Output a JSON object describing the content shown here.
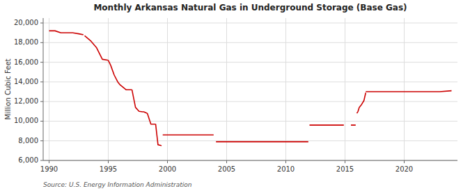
{
  "chart_data": {
    "type": "line",
    "title": "Monthly Arkansas Natural Gas in Underground Storage (Base Gas)",
    "ylabel": "Million Cubic Feet",
    "source": "Source: U.S. Energy Information Administration",
    "grid": true,
    "xlim": [
      1989.5,
      2024.5
    ],
    "ylim": [
      6000,
      20500
    ],
    "xticks": [
      1990,
      1995,
      2000,
      2005,
      2010,
      2015,
      2020
    ],
    "yticks": [
      {
        "value": 6000,
        "label": "6,000"
      },
      {
        "value": 8000,
        "label": "8,000"
      },
      {
        "value": 10000,
        "label": "10,000"
      },
      {
        "value": 12000,
        "label": "12,000"
      },
      {
        "value": 14000,
        "label": "14,000"
      },
      {
        "value": 16000,
        "label": "16,000"
      },
      {
        "value": 18000,
        "label": "18,000"
      },
      {
        "value": 20000,
        "label": "20,000"
      }
    ],
    "x": [
      1990.0,
      1990.5,
      1991.0,
      1991.5,
      1992.0,
      1992.5,
      1992.9,
      null,
      1993.0,
      1993.5,
      1994.0,
      1994.5,
      1995.0,
      null,
      1995.0,
      1995.2,
      1995.5,
      1995.8,
      1996.0,
      1996.5,
      1997.0,
      null,
      1997.0,
      1997.3,
      1997.6,
      1997.9,
      1998.0,
      1998.3,
      null,
      1998.3,
      1998.6,
      1998.9,
      1999.0,
      null,
      1999.0,
      1999.2,
      1999.5,
      null,
      1999.6,
      2000.0,
      2001.0,
      2002.0,
      2003.0,
      2003.9,
      null,
      2004.1,
      2005.0,
      2006.0,
      2007.0,
      2008.0,
      2009.0,
      2010.0,
      2011.0,
      2011.9,
      null,
      2012.0,
      2013.0,
      2014.0,
      2014.9,
      null,
      2015.5,
      2015.9,
      null,
      2016.0,
      2016.1,
      2016.2,
      2016.4,
      2016.6,
      2016.75,
      null,
      2016.75,
      2017.0,
      2018.0,
      2019.0,
      2020.0,
      2021.0,
      2022.0,
      2023.0,
      2024.0
    ],
    "series": [
      {
        "color": "#cc0000",
        "values": [
          19200,
          19200,
          19000,
          19000,
          19000,
          18900,
          18800,
          null,
          18700,
          18200,
          17500,
          16300,
          16200,
          null,
          16200,
          15700,
          14700,
          14000,
          13700,
          13200,
          13200,
          null,
          13200,
          11400,
          11000,
          10950,
          10950,
          10800,
          null,
          10800,
          9700,
          9700,
          9700,
          null,
          9700,
          7600,
          7500,
          null,
          8600,
          8600,
          8600,
          8600,
          8600,
          8600,
          null,
          7900,
          7900,
          7900,
          7900,
          7900,
          7900,
          7900,
          7900,
          7900,
          null,
          9600,
          9600,
          9600,
          9600,
          null,
          9600,
          9600,
          null,
          10800,
          11000,
          11400,
          11700,
          12100,
          12900,
          null,
          13000,
          13000,
          13000,
          13000,
          13000,
          13000,
          13000,
          13000,
          13100
        ]
      }
    ]
  }
}
